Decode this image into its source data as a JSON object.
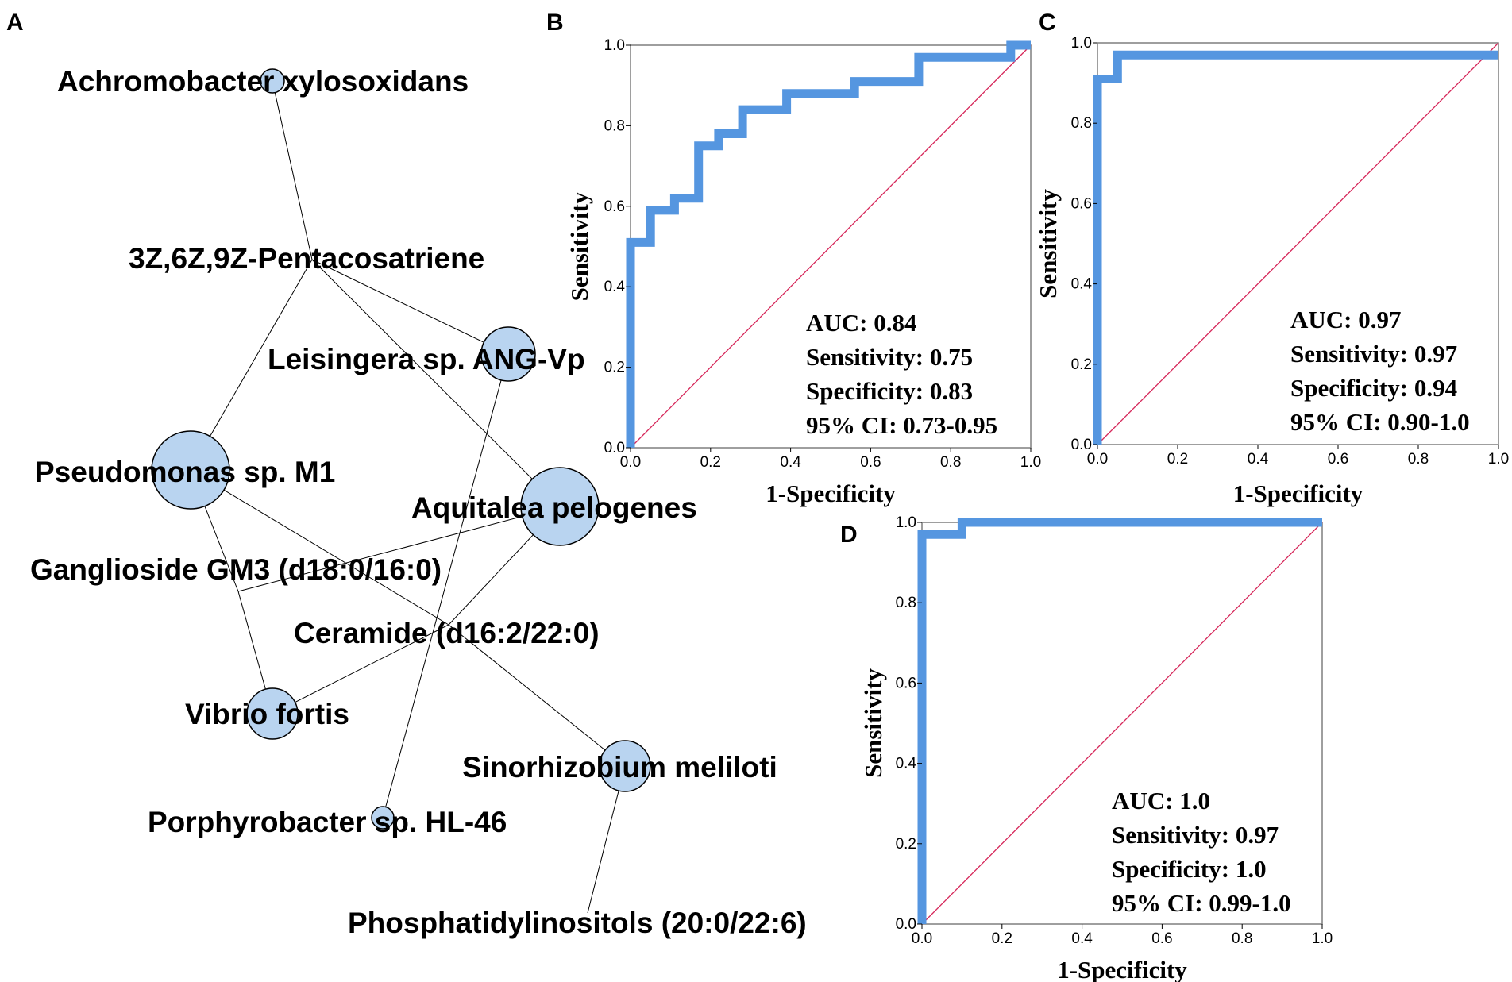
{
  "network": {
    "panel_label": "A",
    "nodes": [
      {
        "id": "n0",
        "label": "Achromobacter xylosoxidans",
        "size": "small"
      },
      {
        "id": "n1",
        "label": "3Z,6Z,9Z-Pentacosatriene",
        "size": "none"
      },
      {
        "id": "n2",
        "label": "Leisingera sp. ANG-Vp",
        "size": "medium"
      },
      {
        "id": "n3",
        "label": "Pseudomonas sp. M1",
        "size": "large"
      },
      {
        "id": "n4",
        "label": "Aquitalea pelogenes",
        "size": "large"
      },
      {
        "id": "n5",
        "label": "Ganglioside GM3 (d18:0/16:0)",
        "size": "none"
      },
      {
        "id": "n6",
        "label": "Ceramide (d16:2/22:0)",
        "size": "none"
      },
      {
        "id": "n7",
        "label": "Vibrio fortis",
        "size": "medium"
      },
      {
        "id": "n8",
        "label": "Sinorhizobium meliloti",
        "size": "medium"
      },
      {
        "id": "n9",
        "label": "Porphyrobacter sp. HL-46",
        "size": "small"
      },
      {
        "id": "n10",
        "label": "Phosphatidylinositols (20:0/22:6)",
        "size": "none"
      }
    ],
    "edges": [
      [
        "n0",
        "n1"
      ],
      [
        "n1",
        "n2"
      ],
      [
        "n1",
        "n3"
      ],
      [
        "n1",
        "n4"
      ],
      [
        "n2",
        "n9"
      ],
      [
        "n3",
        "n6"
      ],
      [
        "n3",
        "n5"
      ],
      [
        "n5",
        "n7"
      ],
      [
        "n5",
        "n4"
      ],
      [
        "n4",
        "n6"
      ],
      [
        "n6",
        "n7"
      ],
      [
        "n6",
        "n8"
      ],
      [
        "n8",
        "n10"
      ]
    ]
  },
  "chart_data": [
    {
      "panel_label": "B",
      "type": "line",
      "title": "",
      "xlabel": "1-Specificity",
      "ylabel": "Sensitivity",
      "xlim": [
        0,
        1
      ],
      "ylim": [
        0,
        1
      ],
      "xticks": [
        "0.0",
        "0.2",
        "0.4",
        "0.6",
        "0.8",
        "1.0"
      ],
      "yticks": [
        "0.0",
        "0.2",
        "0.4",
        "0.6",
        "0.8",
        "1.0"
      ],
      "series": [
        {
          "name": "ROC",
          "color": "#5596e0",
          "x": [
            0,
            0,
            0.05,
            0.05,
            0.11,
            0.11,
            0.17,
            0.17,
            0.22,
            0.22,
            0.28,
            0.28,
            0.39,
            0.39,
            0.56,
            0.56,
            0.72,
            0.72,
            0.95,
            0.95,
            1.0
          ],
          "y": [
            0,
            0.51,
            0.51,
            0.59,
            0.59,
            0.62,
            0.62,
            0.75,
            0.75,
            0.78,
            0.78,
            0.84,
            0.84,
            0.88,
            0.88,
            0.91,
            0.91,
            0.97,
            0.97,
            1.0,
            1.0
          ]
        },
        {
          "name": "Reference",
          "color": "#d6275a",
          "x": [
            0,
            1
          ],
          "y": [
            0,
            1
          ]
        }
      ],
      "annotations": [
        "AUC: 0.84",
        "Sensitivity: 0.75",
        "Specificity: 0.83",
        "95% CI: 0.73-0.95"
      ]
    },
    {
      "panel_label": "C",
      "type": "line",
      "title": "",
      "xlabel": "1-Specificity",
      "ylabel": "Sensitivity",
      "xlim": [
        0,
        1
      ],
      "ylim": [
        0,
        1
      ],
      "xticks": [
        "0.0",
        "0.2",
        "0.4",
        "0.6",
        "0.8",
        "1.0"
      ],
      "yticks": [
        "0.0",
        "0.2",
        "0.4",
        "0.6",
        "0.8",
        "1.0"
      ],
      "series": [
        {
          "name": "ROC",
          "color": "#5596e0",
          "x": [
            0,
            0,
            0.05,
            0.05,
            1.0
          ],
          "y": [
            0,
            0.91,
            0.91,
            0.97,
            0.97
          ]
        },
        {
          "name": "Reference",
          "color": "#d6275a",
          "x": [
            0,
            1
          ],
          "y": [
            0,
            1
          ]
        }
      ],
      "annotations": [
        "AUC: 0.97",
        "Sensitivity: 0.97",
        "Specificity: 0.94",
        "95% CI: 0.90-1.0"
      ]
    },
    {
      "panel_label": "D",
      "type": "line",
      "title": "",
      "xlabel": "1-Specificity",
      "ylabel": "Sensitivity",
      "xlim": [
        0,
        1
      ],
      "ylim": [
        0,
        1
      ],
      "xticks": [
        "0.0",
        "0.2",
        "0.4",
        "0.6",
        "0.8",
        "1.0"
      ],
      "yticks": [
        "0.0",
        "0.2",
        "0.4",
        "0.6",
        "0.8",
        "1.0"
      ],
      "series": [
        {
          "name": "ROC",
          "color": "#5596e0",
          "x": [
            0,
            0,
            0.1,
            0.1,
            1.0
          ],
          "y": [
            0,
            0.97,
            0.97,
            1.0,
            1.0
          ]
        },
        {
          "name": "Reference",
          "color": "#d6275a",
          "x": [
            0,
            1
          ],
          "y": [
            0,
            1
          ]
        }
      ],
      "annotations": [
        "AUC: 1.0",
        "Sensitivity: 0.97",
        "Specificity: 1.0",
        "95% CI: 0.99-1.0"
      ]
    }
  ]
}
